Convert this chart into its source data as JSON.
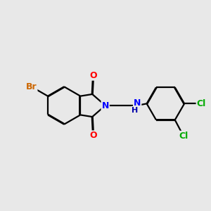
{
  "background_color": "#e8e8e8",
  "bond_color": "#000000",
  "atom_colors": {
    "Br": "#cc6600",
    "N": "#0000ff",
    "O": "#ff0000",
    "Cl": "#00aa00",
    "H": "#0000aa",
    "C": "#000000"
  },
  "figsize": [
    3.0,
    3.0
  ],
  "dpi": 100,
  "bond_lw": 1.6,
  "double_sep": 0.018
}
